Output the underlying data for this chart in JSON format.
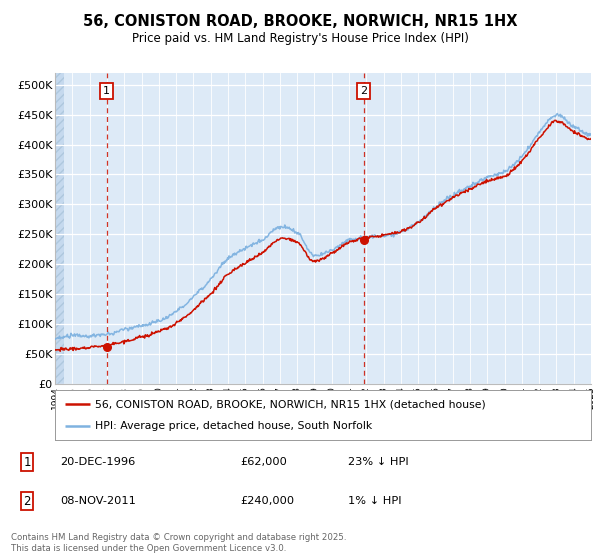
{
  "title": "56, CONISTON ROAD, BROOKE, NORWICH, NR15 1HX",
  "subtitle": "Price paid vs. HM Land Registry's House Price Index (HPI)",
  "sale1": {
    "price": 62000,
    "hpi_pct": "23% ↓ HPI",
    "display_date": "20-DEC-1996",
    "t": 1996.97
  },
  "sale2": {
    "price": 240000,
    "hpi_pct": "1% ↓ HPI",
    "display_date": "08-NOV-2011",
    "t": 2011.85
  },
  "hpi_line_color": "#7fb2e0",
  "price_line_color": "#cc1100",
  "marker_color": "#cc1100",
  "dashed_line_color": "#cc1100",
  "plot_bg_color": "#ddeaf7",
  "ylim": [
    0,
    520000
  ],
  "yticks": [
    0,
    50000,
    100000,
    150000,
    200000,
    250000,
    300000,
    350000,
    400000,
    450000,
    500000
  ],
  "year_start": 1994,
  "year_end": 2025,
  "legend_line1": "56, CONISTON ROAD, BROOKE, NORWICH, NR15 1HX (detached house)",
  "legend_line2": "HPI: Average price, detached house, South Norfolk",
  "footer": "Contains HM Land Registry data © Crown copyright and database right 2025.\nThis data is licensed under the Open Government Licence v3.0."
}
